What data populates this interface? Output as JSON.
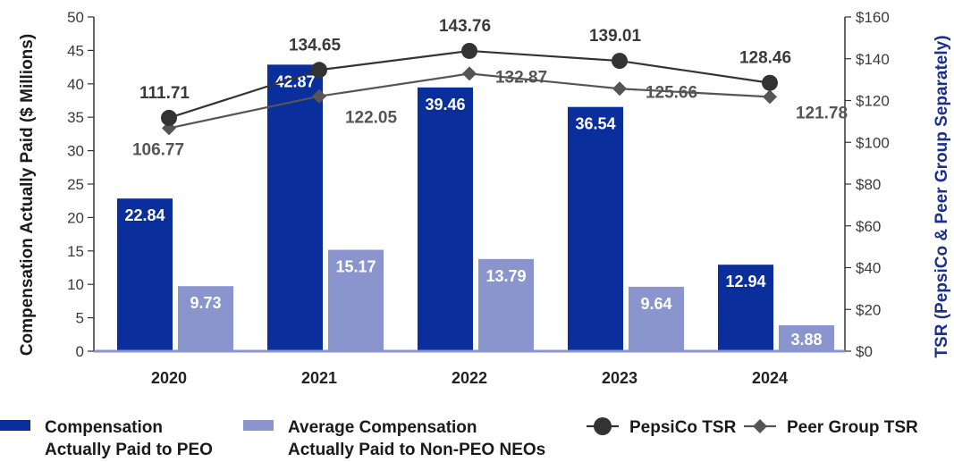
{
  "chart_data": {
    "type": "bar",
    "categories": [
      "2020",
      "2021",
      "2022",
      "2023",
      "2024"
    ],
    "series": [
      {
        "name": "Compensation Actually Paid to PEO",
        "kind": "bar",
        "axis": "left",
        "color": "#0a2f9c",
        "values": [
          22.84,
          42.87,
          39.46,
          36.54,
          12.94
        ]
      },
      {
        "name": "Average Compensation Actually Paid to Non-PEO NEOs",
        "kind": "bar",
        "axis": "left",
        "color": "#8a94cd",
        "values": [
          9.73,
          15.17,
          13.79,
          9.64,
          3.88
        ]
      },
      {
        "name": "PepsiCo TSR",
        "kind": "line",
        "axis": "right",
        "marker": "circle",
        "color": "#333333",
        "values": [
          111.71,
          134.65,
          143.76,
          139.01,
          128.46
        ]
      },
      {
        "name": "Peer Group TSR",
        "kind": "line",
        "axis": "right",
        "marker": "diamond",
        "color": "#555555",
        "values": [
          106.77,
          122.05,
          132.87,
          125.66,
          121.78
        ]
      }
    ],
    "left_axis": {
      "label": "Compensation Actually Paid ($ Millions)",
      "ylim": [
        0,
        50
      ],
      "ticks": [
        0,
        5,
        10,
        15,
        20,
        25,
        30,
        35,
        40,
        45,
        50
      ],
      "tick_labels": [
        "0",
        "5",
        "10",
        "15",
        "20",
        "25",
        "30",
        "35",
        "40",
        "45",
        "50"
      ]
    },
    "right_axis": {
      "label": "TSR (PepsiCo & Peer Group Separately)",
      "ylim": [
        0,
        160
      ],
      "ticks": [
        0,
        20,
        40,
        60,
        80,
        100,
        120,
        140,
        160
      ],
      "tick_labels": [
        "$0",
        "$20",
        "$40",
        "$60",
        "$80",
        "$100",
        "$120",
        "$140",
        "$160"
      ]
    },
    "legend": {
      "position": "bottom",
      "entries": [
        {
          "series": 0,
          "lines": [
            "Compensation",
            "Actually Paid to PEO"
          ]
        },
        {
          "series": 1,
          "lines": [
            "Average Compensation",
            "Actually Paid to Non-PEO NEOs"
          ]
        },
        {
          "series": 2,
          "lines": [
            "PepsiCo TSR"
          ]
        },
        {
          "series": 3,
          "lines": [
            "Peer Group TSR"
          ]
        }
      ]
    },
    "grid": false
  }
}
